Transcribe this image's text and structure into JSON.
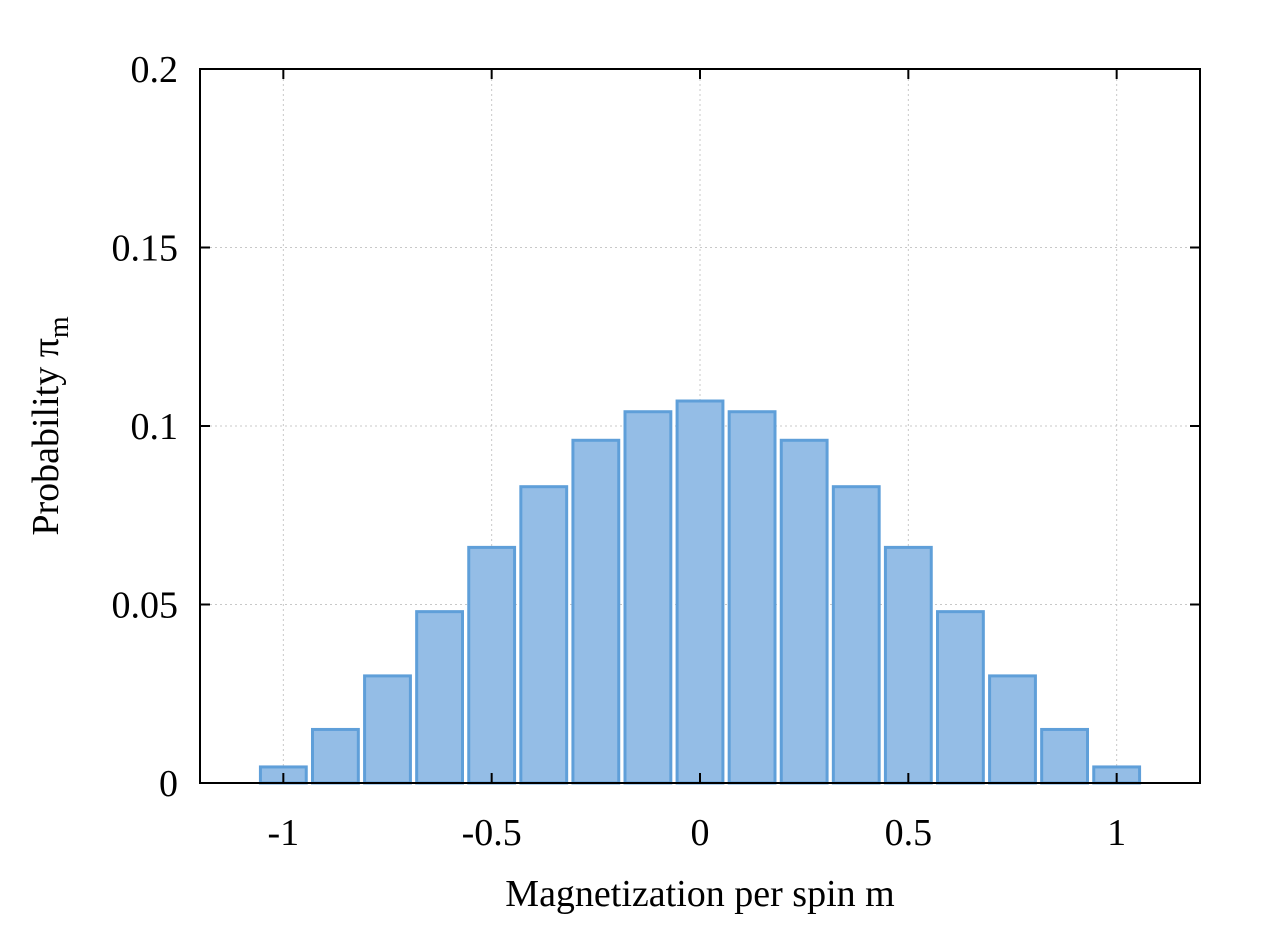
{
  "chart_data": {
    "type": "bar",
    "title": "",
    "xlabel": "Magnetization per spin m",
    "ylabel": "Probability π",
    "ylabel_subscript": "m",
    "xlim": [
      -1.2,
      1.2
    ],
    "ylim": [
      0,
      0.2
    ],
    "x_ticks": [
      -1,
      -0.5,
      0,
      0.5,
      1
    ],
    "x_tick_labels": [
      "-1",
      "-0.5",
      "0",
      "0.5",
      "1"
    ],
    "y_ticks": [
      0,
      0.05,
      0.1,
      0.15,
      0.2
    ],
    "y_tick_labels": [
      "0",
      "0.05",
      "0.1",
      "0.15",
      "0.2"
    ],
    "grid": true,
    "bar_width": 0.11,
    "x": [
      -1.0,
      -0.875,
      -0.75,
      -0.625,
      -0.5,
      -0.375,
      -0.25,
      -0.125,
      0.0,
      0.125,
      0.25,
      0.375,
      0.5,
      0.625,
      0.75,
      0.875,
      1.0
    ],
    "values": [
      0.0045,
      0.015,
      0.03,
      0.048,
      0.066,
      0.083,
      0.096,
      0.104,
      0.107,
      0.104,
      0.096,
      0.083,
      0.066,
      0.048,
      0.03,
      0.015,
      0.0045
    ],
    "colors": {
      "bar_fill": "#94bde6",
      "bar_stroke": "#5f9fd9"
    }
  }
}
